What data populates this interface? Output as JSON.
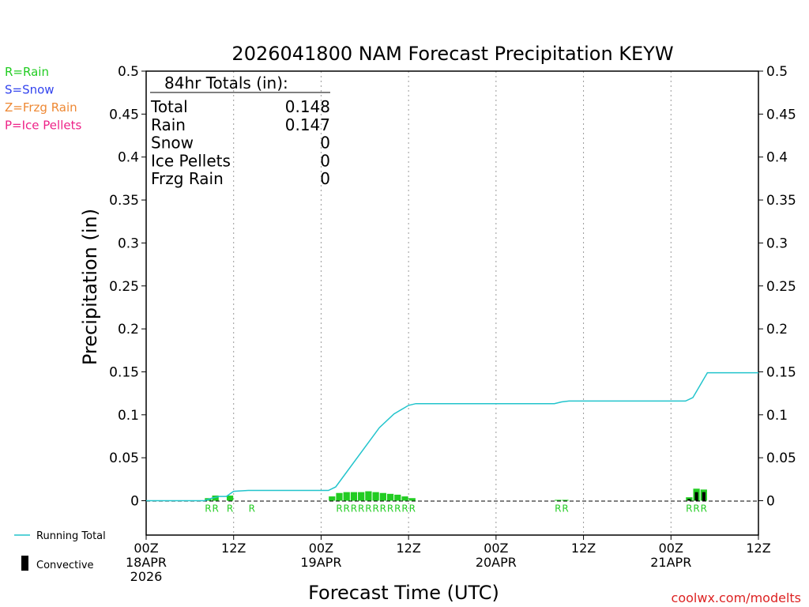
{
  "chart_data": {
    "type": "bar",
    "title": "2026041800 NAM Forecast Precipitation KEYW",
    "xlabel": "Forecast Time (UTC)",
    "ylabel": "Precipitation (in)",
    "ylim": [
      -0.04,
      0.5
    ],
    "xlim_hours": [
      0,
      84
    ],
    "grid": "vertical dotted at 12-hour marks",
    "y_ticks": [
      "0",
      "0.05",
      "0.1",
      "0.15",
      "0.2",
      "0.25",
      "0.3",
      "0.35",
      "0.4",
      "0.45",
      "0.5"
    ],
    "x_ticks": [
      {
        "h": 0,
        "lines": [
          "00Z",
          "18APR",
          "2026"
        ]
      },
      {
        "h": 12,
        "lines": [
          "12Z"
        ]
      },
      {
        "h": 24,
        "lines": [
          "00Z",
          "19APR"
        ]
      },
      {
        "h": 36,
        "lines": [
          "12Z"
        ]
      },
      {
        "h": 48,
        "lines": [
          "00Z",
          "20APR"
        ]
      },
      {
        "h": 60,
        "lines": [
          "12Z"
        ]
      },
      {
        "h": 72,
        "lines": [
          "00Z",
          "21APR"
        ]
      },
      {
        "h": 84,
        "lines": [
          "12Z"
        ]
      }
    ],
    "legend": {
      "precip_types": [
        {
          "label": "R=Rain",
          "color": "#22cc22"
        },
        {
          "label": "S=Snow",
          "color": "#3344ee"
        },
        {
          "label": "Z=Frzg Rain",
          "color": "#ee8833"
        },
        {
          "label": "P=Ice Pellets",
          "color": "#ee2288"
        }
      ],
      "running_total_label": "Running Total",
      "convective_label": "Convective"
    },
    "totals": {
      "header": "84hr Totals (in):",
      "rows": [
        {
          "label": "Total",
          "value": "0.148"
        },
        {
          "label": "Rain",
          "value": "0.147"
        },
        {
          "label": "Snow",
          "value": "0"
        },
        {
          "label": "Ice Pellets",
          "value": "0"
        },
        {
          "label": "Frzg Rain",
          "value": "0"
        }
      ]
    },
    "hourly_bars": [
      {
        "h": 9,
        "value": 0.003,
        "convective": 0
      },
      {
        "h": 10,
        "value": 0.006,
        "convective": 0
      },
      {
        "h": 12,
        "value": 0.006,
        "convective": 0
      },
      {
        "h": 26,
        "value": 0.005,
        "convective": 0
      },
      {
        "h": 27,
        "value": 0.009,
        "convective": 0
      },
      {
        "h": 28,
        "value": 0.01,
        "convective": 0
      },
      {
        "h": 29,
        "value": 0.01,
        "convective": 0
      },
      {
        "h": 30,
        "value": 0.01,
        "convective": 0
      },
      {
        "h": 31,
        "value": 0.011,
        "convective": 0
      },
      {
        "h": 32,
        "value": 0.01,
        "convective": 0
      },
      {
        "h": 33,
        "value": 0.009,
        "convective": 0
      },
      {
        "h": 34,
        "value": 0.008,
        "convective": 0
      },
      {
        "h": 35,
        "value": 0.007,
        "convective": 0
      },
      {
        "h": 36,
        "value": 0.005,
        "convective": 0
      },
      {
        "h": 37,
        "value": 0.003,
        "convective": 0
      },
      {
        "h": 57,
        "value": 0.001,
        "convective": 0
      },
      {
        "h": 58,
        "value": 0.001,
        "convective": 0
      },
      {
        "h": 75,
        "value": 0.004,
        "convective": 0.002
      },
      {
        "h": 76,
        "value": 0.014,
        "convective": 0.01
      },
      {
        "h": 77,
        "value": 0.013,
        "convective": 0.01
      }
    ],
    "running_total": {
      "h": [
        0,
        8,
        9,
        10,
        11,
        12,
        14,
        25,
        26,
        30,
        32,
        34,
        36,
        37,
        38,
        56,
        57,
        58,
        59,
        74,
        75,
        77,
        84
      ],
      "value": [
        0,
        0,
        0.003,
        0.005,
        0.005,
        0.011,
        0.012,
        0.012,
        0.016,
        0.062,
        0.085,
        0.101,
        0.111,
        0.113,
        0.113,
        0.113,
        0.115,
        0.116,
        0.116,
        0.116,
        0.12,
        0.149,
        0.149
      ]
    },
    "type_markers": [
      {
        "h": 9,
        "text": "R"
      },
      {
        "h": 10,
        "text": "R"
      },
      {
        "h": 12,
        "text": "R"
      },
      {
        "h": 15,
        "text": "R"
      },
      {
        "h": 27,
        "text": "R"
      },
      {
        "h": 28,
        "text": "R"
      },
      {
        "h": 29,
        "text": "R"
      },
      {
        "h": 30,
        "text": "R"
      },
      {
        "h": 31,
        "text": "R"
      },
      {
        "h": 32,
        "text": "R"
      },
      {
        "h": 33,
        "text": "R"
      },
      {
        "h": 34,
        "text": "R"
      },
      {
        "h": 35,
        "text": "R"
      },
      {
        "h": 36,
        "text": "R"
      },
      {
        "h": 37,
        "text": "R"
      },
      {
        "h": 57,
        "text": "R"
      },
      {
        "h": 58,
        "text": "R"
      },
      {
        "h": 75,
        "text": "R"
      },
      {
        "h": 76,
        "text": "R"
      },
      {
        "h": 77,
        "text": "R"
      }
    ],
    "colors": {
      "rain": "#22cc22",
      "running_total": "#22c4cc",
      "convective": "#000000",
      "grid": "#999999"
    }
  },
  "footer": {
    "credit": "coolwx.com/modelts",
    "credit_color": "#dd2222"
  }
}
